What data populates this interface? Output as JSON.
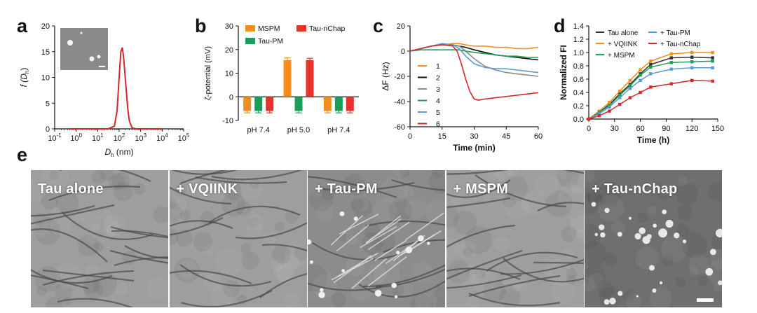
{
  "panels": {
    "a": {
      "letter": "a"
    },
    "b": {
      "letter": "b"
    },
    "c": {
      "letter": "c"
    },
    "d": {
      "letter": "d"
    },
    "e": {
      "letter": "e"
    }
  },
  "chart_data": [
    {
      "id": "a",
      "type": "line",
      "xlabel_main": "D",
      "xlabel_sub": "h",
      "xlabel_unit": "(nm)",
      "ylabel_f": "f",
      "ylabel_inner": "D",
      "ylabel_inner_sub": "h",
      "x_scale": "log",
      "xlim_exp": [
        -1,
        5
      ],
      "x_tick_exponents": [
        "-1",
        "0",
        "1",
        "2",
        "3",
        "4",
        "5"
      ],
      "x_tick_base": "10",
      "ylim": [
        0,
        20
      ],
      "y_ticks": [
        0,
        5,
        10,
        15,
        20
      ],
      "series": [
        {
          "color": "#d62728",
          "x": [
            0.5,
            1,
            3,
            10,
            30,
            60,
            80,
            100,
            120,
            140,
            160,
            200,
            250,
            300,
            400,
            600,
            1000,
            3000,
            10000
          ],
          "y": [
            0,
            0,
            0,
            0,
            0,
            0.5,
            3.5,
            10,
            15,
            15.8,
            14,
            9,
            4,
            1.5,
            0.2,
            0,
            0,
            0,
            0
          ]
        }
      ]
    },
    {
      "id": "b",
      "type": "bar",
      "ylabel": "ζ-potential (mV)",
      "ylim": [
        -10,
        30
      ],
      "y_ticks": [
        -10,
        0,
        10,
        20,
        30
      ],
      "categories": [
        "pH 7.4",
        "pH 5.0",
        "pH 7.4"
      ],
      "series": [
        {
          "name": "MSPM",
          "color": "#f28e1c",
          "values": [
            -6,
            15.5,
            -6
          ],
          "err": [
            0.8,
            1.0,
            0.8
          ]
        },
        {
          "name": "Tau-PM",
          "color": "#1a9e5a",
          "values": [
            -6,
            -6,
            -6
          ],
          "err": [
            0.8,
            0.8,
            0.8
          ]
        },
        {
          "name": "Tau-nChap",
          "color": "#e8322b",
          "values": [
            -6,
            15.5,
            -6
          ],
          "err": [
            0.8,
            0.8,
            0.8
          ]
        }
      ]
    },
    {
      "id": "c",
      "type": "line",
      "xlabel": "Time (min)",
      "ylabel": "ΔF (Hz)",
      "xlim": [
        0,
        60
      ],
      "ylim": [
        -60,
        20
      ],
      "x_ticks": [
        0,
        15,
        30,
        45,
        60
      ],
      "y_ticks": [
        -60,
        -40,
        -20,
        0,
        20
      ],
      "series": [
        {
          "name": "1",
          "color": "#f28e1c",
          "x": [
            0,
            5,
            10,
            15,
            20,
            23,
            26,
            30,
            35,
            40,
            45,
            50,
            55,
            60
          ],
          "y": [
            0,
            2,
            4,
            5,
            6,
            6,
            5,
            4,
            4,
            3,
            3,
            2,
            2,
            3
          ]
        },
        {
          "name": "2",
          "color": "#111111",
          "x": [
            0,
            5,
            10,
            15,
            20,
            23,
            26,
            30,
            35,
            40,
            45,
            50,
            55,
            60
          ],
          "y": [
            0,
            2,
            4,
            5,
            5,
            4,
            3,
            1,
            -1,
            -3,
            -4,
            -5,
            -6,
            -7
          ]
        },
        {
          "name": "3",
          "color": "#8c8c8c",
          "x": [
            0,
            5,
            10,
            15,
            20,
            23,
            26,
            30,
            35,
            40,
            45,
            50,
            55,
            60
          ],
          "y": [
            0,
            2,
            4,
            5,
            5,
            4,
            0,
            -6,
            -12,
            -15,
            -17,
            -18,
            -19,
            -20
          ]
        },
        {
          "name": "4",
          "color": "#1a9e5a",
          "x": [
            0,
            5,
            10,
            15,
            20,
            23,
            26,
            30,
            35,
            40,
            45,
            50,
            55,
            60
          ],
          "y": [
            0,
            1,
            1,
            1,
            1,
            1,
            0,
            -1,
            -2,
            -3,
            -4,
            -4,
            -5,
            -5
          ]
        },
        {
          "name": "5",
          "color": "#5b9bd5",
          "x": [
            0,
            5,
            10,
            15,
            20,
            23,
            26,
            30,
            35,
            40,
            45,
            50,
            55,
            60
          ],
          "y": [
            0,
            2,
            4,
            6,
            5,
            2,
            -4,
            -10,
            -13,
            -14,
            -14,
            -15,
            -16,
            -17
          ]
        },
        {
          "name": "6",
          "color": "#d62728",
          "x": [
            0,
            5,
            10,
            15,
            20,
            22,
            24,
            26,
            28,
            30,
            32,
            35,
            40,
            45,
            50,
            55,
            60
          ],
          "y": [
            0,
            2,
            4,
            5,
            4,
            0,
            -10,
            -22,
            -32,
            -38,
            -39,
            -38,
            -37,
            -36,
            -35,
            -34,
            -33
          ]
        }
      ]
    },
    {
      "id": "d",
      "type": "line",
      "xlabel": "Time (h)",
      "ylabel": "Normalized FI",
      "xlim": [
        0,
        150
      ],
      "ylim": [
        0,
        1.4
      ],
      "x_ticks": [
        0,
        30,
        60,
        90,
        120,
        150
      ],
      "y_ticks": [
        "0.0",
        "0.2",
        "0.4",
        "0.6",
        "0.8",
        "1.0",
        "1.2",
        "1.4"
      ],
      "series": [
        {
          "name": "Tau alone",
          "color": "#333333",
          "x": [
            0,
            12,
            24,
            36,
            48,
            60,
            72,
            96,
            120,
            144
          ],
          "y": [
            0,
            0.1,
            0.22,
            0.38,
            0.52,
            0.68,
            0.82,
            0.92,
            0.93,
            0.92
          ]
        },
        {
          "name": "+ VQIINK",
          "color": "#f28e1c",
          "x": [
            0,
            12,
            24,
            36,
            48,
            60,
            72,
            96,
            120,
            144
          ],
          "y": [
            0,
            0.12,
            0.25,
            0.42,
            0.58,
            0.74,
            0.87,
            0.98,
            1.0,
            1.0
          ]
        },
        {
          "name": "+ MSPM",
          "color": "#1a9e5a",
          "x": [
            0,
            12,
            24,
            36,
            48,
            60,
            72,
            96,
            120,
            144
          ],
          "y": [
            0,
            0.1,
            0.2,
            0.36,
            0.5,
            0.66,
            0.78,
            0.85,
            0.86,
            0.87
          ]
        },
        {
          "name": "+ Tau-PM",
          "color": "#5b9bd5",
          "x": [
            0,
            12,
            24,
            36,
            48,
            60,
            72,
            96,
            120,
            144
          ],
          "y": [
            0,
            0.08,
            0.18,
            0.32,
            0.46,
            0.58,
            0.68,
            0.75,
            0.77,
            0.77
          ]
        },
        {
          "name": "+ Tau-nChap",
          "color": "#d62728",
          "x": [
            0,
            12,
            24,
            36,
            48,
            60,
            72,
            96,
            120,
            144
          ],
          "y": [
            0,
            0.05,
            0.12,
            0.22,
            0.32,
            0.4,
            0.48,
            0.53,
            0.58,
            0.57
          ]
        }
      ]
    }
  ],
  "tem_images": [
    {
      "label": "Tau alone",
      "style": "fibrils"
    },
    {
      "label": "+ VQIINK",
      "style": "fibrils"
    },
    {
      "label": "+ Tau-PM",
      "style": "bundle"
    },
    {
      "label": "+ MSPM",
      "style": "fibrils"
    },
    {
      "label": "+ Tau-nChap",
      "style": "particles"
    }
  ]
}
